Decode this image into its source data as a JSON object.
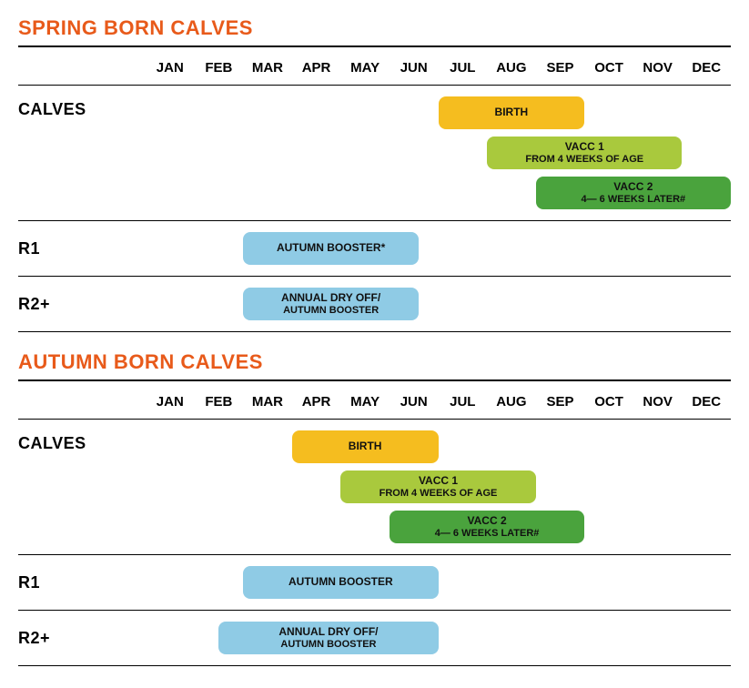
{
  "months": [
    "JAN",
    "FEB",
    "MAR",
    "APR",
    "MAY",
    "JUN",
    "JUL",
    "AUG",
    "SEP",
    "OCT",
    "NOV",
    "DEC"
  ],
  "colors": {
    "title": "#e85a1a",
    "birth": "#f5bd1f",
    "vacc1": "#a9c93d",
    "vacc2": "#4aa33d",
    "booster": "#8fcbe5"
  },
  "sections": [
    {
      "title": "SPRING BORN CALVES",
      "groups": [
        {
          "label": "CALVES",
          "kind": "stack",
          "bands": [
            {
              "label": "BIRTH",
              "sub": "",
              "colorKey": "birth",
              "startMonth": 7,
              "endMonth": 10
            },
            {
              "label": "VACC 1",
              "sub": "FROM 4 WEEKS OF AGE",
              "colorKey": "vacc1",
              "startMonth": 8,
              "endMonth": 12
            },
            {
              "label": "VACC 2",
              "sub": "4— 6 WEEKS LATER#",
              "colorKey": "vacc2",
              "startMonth": 9,
              "endMonth": 13
            }
          ]
        },
        {
          "label": "R1",
          "kind": "single",
          "bands": [
            {
              "label": "AUTUMN BOOSTER*",
              "sub": "",
              "colorKey": "booster",
              "startMonth": 3,
              "endMonth": 6.6
            }
          ]
        },
        {
          "label": "R2+",
          "kind": "single",
          "bands": [
            {
              "label": "ANNUAL DRY OFF/",
              "sub": "AUTUMN BOOSTER",
              "colorKey": "booster",
              "startMonth": 3,
              "endMonth": 6.6
            }
          ]
        }
      ]
    },
    {
      "title": "AUTUMN BORN CALVES",
      "groups": [
        {
          "label": "CALVES",
          "kind": "stack",
          "bands": [
            {
              "label": "BIRTH",
              "sub": "",
              "colorKey": "birth",
              "startMonth": 4,
              "endMonth": 7
            },
            {
              "label": "VACC 1",
              "sub": "FROM 4 WEEKS OF AGE",
              "colorKey": "vacc1",
              "startMonth": 5,
              "endMonth": 9
            },
            {
              "label": "VACC 2",
              "sub": "4— 6 WEEKS LATER#",
              "colorKey": "vacc2",
              "startMonth": 6,
              "endMonth": 10
            }
          ]
        },
        {
          "label": "R1",
          "kind": "single",
          "bands": [
            {
              "label": "AUTUMN BOOSTER",
              "sub": "",
              "colorKey": "booster",
              "startMonth": 3,
              "endMonth": 7
            }
          ]
        },
        {
          "label": "R2+",
          "kind": "single",
          "bands": [
            {
              "label": "ANNUAL DRY OFF/",
              "sub": "AUTUMN BOOSTER",
              "colorKey": "booster",
              "startMonth": 2.5,
              "endMonth": 7
            }
          ]
        }
      ]
    }
  ]
}
